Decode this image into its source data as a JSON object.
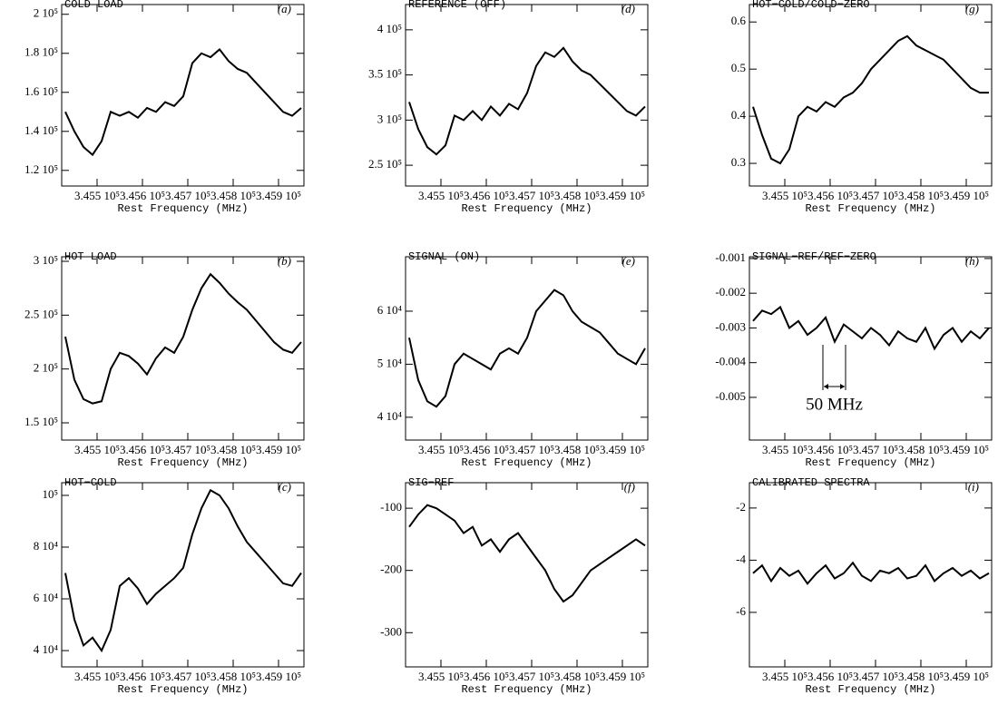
{
  "chart_data": [
    {
      "type": "line",
      "title": "COLD LOAD",
      "label": "(a)",
      "x_label": "Rest Frequency (MHz)",
      "color": "#000000",
      "x": [
        345430,
        345450,
        345470,
        345490,
        345510,
        345530,
        345550,
        345570,
        345590,
        345610,
        345630,
        345650,
        345670,
        345690,
        345710,
        345730,
        345750,
        345770,
        345790,
        345810,
        345830,
        345850,
        345870,
        345890,
        345910,
        345930,
        345950
      ],
      "values": [
        150000,
        140000,
        132000,
        128000,
        135000,
        150000,
        148000,
        150000,
        147000,
        152000,
        150000,
        155000,
        153000,
        158000,
        175000,
        180000,
        178000,
        182000,
        176000,
        172000,
        170000,
        165000,
        160000,
        155000,
        150000,
        148000,
        152000
      ],
      "xlim": [
        345422,
        345956
      ],
      "xticks": [
        {
          "value": 345500,
          "label": "3.455 10⁵"
        },
        {
          "value": 345600,
          "label": "3.456 10⁵"
        },
        {
          "value": 345700,
          "label": "3.457 10⁵"
        },
        {
          "value": 345800,
          "label": "3.458 10⁵"
        },
        {
          "value": 345900,
          "label": "3.459 10⁵"
        }
      ],
      "ylim": [
        112000,
        205000
      ],
      "yticks": [
        {
          "value": 120000,
          "label": "1.2 10⁵"
        },
        {
          "value": 140000,
          "label": "1.4 10⁵"
        },
        {
          "value": 160000,
          "label": "1.6 10⁵"
        },
        {
          "value": 180000,
          "label": "1.8 10⁵"
        },
        {
          "value": 200000,
          "label": "2 10⁵"
        }
      ]
    },
    {
      "type": "line",
      "title": "HOT LOAD",
      "label": "(b)",
      "x_label": "Rest Frequency (MHz)",
      "color": "#000000",
      "x": [
        345430,
        345450,
        345470,
        345490,
        345510,
        345530,
        345550,
        345570,
        345590,
        345610,
        345630,
        345650,
        345670,
        345690,
        345710,
        345730,
        345750,
        345770,
        345790,
        345810,
        345830,
        345850,
        345870,
        345890,
        345910,
        345930,
        345950
      ],
      "values": [
        230000,
        190000,
        172000,
        168000,
        170000,
        200000,
        215000,
        212000,
        205000,
        195000,
        210000,
        220000,
        215000,
        230000,
        255000,
        275000,
        288000,
        280000,
        270000,
        262000,
        255000,
        245000,
        235000,
        225000,
        218000,
        215000,
        225000
      ],
      "xlim": [
        345422,
        345956
      ],
      "xticks": [
        {
          "value": 345500,
          "label": "3.455 10⁵"
        },
        {
          "value": 345600,
          "label": "3.456 10⁵"
        },
        {
          "value": 345700,
          "label": "3.457 10⁵"
        },
        {
          "value": 345800,
          "label": "3.458 10⁵"
        },
        {
          "value": 345900,
          "label": "3.459 10⁵"
        }
      ],
      "ylim": [
        134000,
        304200
      ],
      "yticks": [
        {
          "value": 150000,
          "label": "1.5 10⁵"
        },
        {
          "value": 200000,
          "label": "2 10⁵"
        },
        {
          "value": 250000,
          "label": "2.5 10⁵"
        },
        {
          "value": 300000,
          "label": "3 10⁵"
        }
      ]
    },
    {
      "type": "line",
      "title": "HOT−COLD",
      "label": "(c)",
      "x_label": "Rest Frequency (MHz)",
      "color": "#000000",
      "x": [
        345430,
        345450,
        345470,
        345490,
        345510,
        345530,
        345550,
        345570,
        345590,
        345610,
        345630,
        345650,
        345670,
        345690,
        345710,
        345730,
        345750,
        345770,
        345790,
        345810,
        345830,
        345850,
        345870,
        345890,
        345910,
        345930,
        345950
      ],
      "values": [
        70000,
        52000,
        42000,
        45000,
        40000,
        48000,
        65000,
        68000,
        64000,
        58000,
        62000,
        65000,
        68000,
        72000,
        85000,
        95000,
        102000,
        100000,
        95000,
        88000,
        82000,
        78000,
        74000,
        70000,
        66000,
        65000,
        70000
      ],
      "xlim": [
        345422,
        345956
      ],
      "xticks": [
        {
          "value": 345500,
          "label": "3.455 10⁵"
        },
        {
          "value": 345600,
          "label": "3.456 10⁵"
        },
        {
          "value": 345700,
          "label": "3.457 10⁵"
        },
        {
          "value": 345800,
          "label": "3.458 10⁵"
        },
        {
          "value": 345900,
          "label": "3.459 10⁵"
        }
      ],
      "ylim": [
        33700,
        104900
      ],
      "yticks": [
        {
          "value": 40000,
          "label": "4 10⁴"
        },
        {
          "value": 60000,
          "label": "6 10⁴"
        },
        {
          "value": 80000,
          "label": "8 10⁴"
        },
        {
          "value": 100000,
          "label": "10⁵"
        }
      ]
    },
    {
      "type": "line",
      "title": "REFERENCE (OFF)",
      "label": "(d)",
      "x_label": "Rest Frequency (MHz)",
      "color": "#000000",
      "x": [
        345430,
        345450,
        345470,
        345490,
        345510,
        345530,
        345550,
        345570,
        345590,
        345610,
        345630,
        345650,
        345670,
        345690,
        345710,
        345730,
        345750,
        345770,
        345790,
        345810,
        345830,
        345850,
        345870,
        345890,
        345910,
        345930,
        345950
      ],
      "values": [
        320000,
        290000,
        270000,
        262000,
        272000,
        305000,
        300000,
        310000,
        300000,
        315000,
        305000,
        318000,
        312000,
        330000,
        360000,
        375000,
        370000,
        380000,
        365000,
        355000,
        350000,
        340000,
        330000,
        320000,
        310000,
        305000,
        315000
      ],
      "xlim": [
        345422,
        345956
      ],
      "xticks": [
        {
          "value": 345500,
          "label": "3.455 10⁵"
        },
        {
          "value": 345600,
          "label": "3.456 10⁵"
        },
        {
          "value": 345700,
          "label": "3.457 10⁵"
        },
        {
          "value": 345800,
          "label": "3.458 10⁵"
        },
        {
          "value": 345900,
          "label": "3.459 10⁵"
        }
      ],
      "ylim": [
        227000,
        428000
      ],
      "yticks": [
        {
          "value": 250000,
          "label": "2.5 10⁵"
        },
        {
          "value": 300000,
          "label": "3 10⁵"
        },
        {
          "value": 350000,
          "label": "3.5 10⁵"
        },
        {
          "value": 400000,
          "label": "4 10⁵"
        }
      ]
    },
    {
      "type": "line",
      "title": "SIGNAL (ON)",
      "label": "(e)",
      "x_label": "Rest Frequency (MHz)",
      "color": "#000000",
      "x": [
        345430,
        345450,
        345470,
        345490,
        345510,
        345530,
        345550,
        345570,
        345590,
        345610,
        345630,
        345650,
        345670,
        345690,
        345710,
        345730,
        345750,
        345770,
        345790,
        345810,
        345830,
        345850,
        345870,
        345890,
        345910,
        345930,
        345950
      ],
      "values": [
        55000,
        47000,
        43000,
        42000,
        44000,
        50000,
        52000,
        51000,
        50000,
        49000,
        52000,
        53000,
        52000,
        55000,
        60000,
        62000,
        64000,
        63000,
        60000,
        58000,
        57000,
        56000,
        54000,
        52000,
        51000,
        50000,
        53000
      ],
      "xlim": [
        345422,
        345956
      ],
      "xticks": [
        {
          "value": 345500,
          "label": "3.455 10⁵"
        },
        {
          "value": 345600,
          "label": "3.456 10⁵"
        },
        {
          "value": 345700,
          "label": "3.457 10⁵"
        },
        {
          "value": 345800,
          "label": "3.458 10⁵"
        },
        {
          "value": 345900,
          "label": "3.459 10⁵"
        }
      ],
      "ylim": [
        35700,
        70260
      ],
      "yticks": [
        {
          "value": 40000,
          "label": "4 10⁴"
        },
        {
          "value": 50000,
          "label": "5 10⁴"
        },
        {
          "value": 60000,
          "label": "6 10⁴"
        }
      ]
    },
    {
      "type": "line",
      "title": "SIG−REF",
      "label": "(f)",
      "x_label": "Rest Frequency (MHz)",
      "color": "#000000",
      "x": [
        345430,
        345450,
        345470,
        345490,
        345510,
        345530,
        345550,
        345570,
        345590,
        345610,
        345630,
        345650,
        345670,
        345690,
        345710,
        345730,
        345750,
        345770,
        345790,
        345810,
        345830,
        345850,
        345870,
        345890,
        345910,
        345930,
        345950
      ],
      "values": [
        -130,
        -110,
        -95,
        -100,
        -110,
        -120,
        -140,
        -130,
        -160,
        -150,
        -170,
        -150,
        -140,
        -160,
        -180,
        -200,
        -230,
        -250,
        -240,
        -220,
        -200,
        -190,
        -180,
        -170,
        -160,
        -150,
        -160
      ],
      "xlim": [
        345422,
        345956
      ],
      "xticks": [
        {
          "value": 345500,
          "label": "3.455 10⁵"
        },
        {
          "value": 345600,
          "label": "3.456 10⁵"
        },
        {
          "value": 345700,
          "label": "3.457 10⁵"
        },
        {
          "value": 345800,
          "label": "3.458 10⁵"
        },
        {
          "value": 345900,
          "label": "3.459 10⁵"
        }
      ],
      "ylim": [
        -355,
        -59
      ],
      "yticks": [
        -100,
        -200,
        -300
      ]
    },
    {
      "type": "line",
      "title": "HOT−COLD/COLD−ZERO",
      "label": "(g)",
      "x_label": "Rest Frequency (MHz)",
      "color": "#000000",
      "x": [
        345430,
        345450,
        345470,
        345490,
        345510,
        345530,
        345550,
        345570,
        345590,
        345610,
        345630,
        345650,
        345670,
        345690,
        345710,
        345730,
        345750,
        345770,
        345790,
        345810,
        345830,
        345850,
        345870,
        345890,
        345910,
        345930,
        345950
      ],
      "values": [
        0.42,
        0.36,
        0.31,
        0.3,
        0.33,
        0.4,
        0.42,
        0.41,
        0.43,
        0.42,
        0.44,
        0.45,
        0.47,
        0.5,
        0.52,
        0.54,
        0.56,
        0.57,
        0.55,
        0.54,
        0.53,
        0.52,
        0.5,
        0.48,
        0.46,
        0.45,
        0.45
      ],
      "xlim": [
        345422,
        345956
      ],
      "xticks": [
        {
          "value": 345500,
          "label": "3.455 10⁵"
        },
        {
          "value": 345600,
          "label": "3.456 10⁵"
        },
        {
          "value": 345700,
          "label": "3.457 10⁵"
        },
        {
          "value": 345800,
          "label": "3.458 10⁵"
        },
        {
          "value": 345900,
          "label": "3.459 10⁵"
        }
      ],
      "ylim": [
        0.252,
        0.637
      ],
      "yticks": [
        0.3,
        0.4,
        0.5,
        0.6
      ]
    },
    {
      "type": "line",
      "title": "SIGNAL−REF/REF−ZERO",
      "label": "(h)",
      "x_label": "Rest Frequency (MHz)",
      "color": "#000000",
      "annotation": "50 MHz",
      "x": [
        345430,
        345450,
        345470,
        345490,
        345510,
        345530,
        345550,
        345570,
        345590,
        345610,
        345630,
        345650,
        345670,
        345690,
        345710,
        345730,
        345750,
        345770,
        345790,
        345810,
        345830,
        345850,
        345870,
        345890,
        345910,
        345930,
        345950
      ],
      "values": [
        -0.0028,
        -0.0025,
        -0.0026,
        -0.0024,
        -0.003,
        -0.0028,
        -0.0032,
        -0.003,
        -0.0027,
        -0.0034,
        -0.0029,
        -0.0031,
        -0.0033,
        -0.003,
        -0.0032,
        -0.0035,
        -0.0031,
        -0.0033,
        -0.0034,
        -0.003,
        -0.0036,
        -0.0032,
        -0.003,
        -0.0034,
        -0.0031,
        -0.0033,
        -0.003
      ],
      "xlim": [
        345422,
        345956
      ],
      "xticks": [
        {
          "value": 345500,
          "label": "3.455 10⁵"
        },
        {
          "value": 345600,
          "label": "3.456 10⁵"
        },
        {
          "value": 345700,
          "label": "3.457 10⁵"
        },
        {
          "value": 345800,
          "label": "3.458 10⁵"
        },
        {
          "value": 345900,
          "label": "3.459 10⁵"
        }
      ],
      "ylim": [
        -0.00623,
        -0.00095
      ],
      "yticks": [
        -0.001,
        -0.002,
        -0.003,
        -0.004,
        -0.005
      ]
    },
    {
      "type": "line",
      "title": "CALIBRATED SPECTRA",
      "label": "(i)",
      "x_label": "Rest Frequency (MHz)",
      "color": "#000000",
      "x": [
        345430,
        345450,
        345470,
        345490,
        345510,
        345530,
        345550,
        345570,
        345590,
        345610,
        345630,
        345650,
        345670,
        345690,
        345710,
        345730,
        345750,
        345770,
        345790,
        345810,
        345830,
        345850,
        345870,
        345890,
        345910,
        345930,
        345950
      ],
      "values": [
        -4.5,
        -4.2,
        -4.8,
        -4.3,
        -4.6,
        -4.4,
        -4.9,
        -4.5,
        -4.2,
        -4.7,
        -4.5,
        -4.1,
        -4.6,
        -4.8,
        -4.4,
        -4.5,
        -4.3,
        -4.7,
        -4.6,
        -4.2,
        -4.8,
        -4.5,
        -4.3,
        -4.6,
        -4.4,
        -4.7,
        -4.5
      ],
      "xlim": [
        345422,
        345956
      ],
      "xticks": [
        {
          "value": 345500,
          "label": "3.455 10⁵"
        },
        {
          "value": 345600,
          "label": "3.456 10⁵"
        },
        {
          "value": 345700,
          "label": "3.457 10⁵"
        },
        {
          "value": 345800,
          "label": "3.458 10⁵"
        },
        {
          "value": 345900,
          "label": "3.459 10⁵"
        }
      ],
      "ylim": [
        -8.09,
        -1.03
      ],
      "yticks": [
        -2,
        -4,
        -6
      ]
    }
  ]
}
